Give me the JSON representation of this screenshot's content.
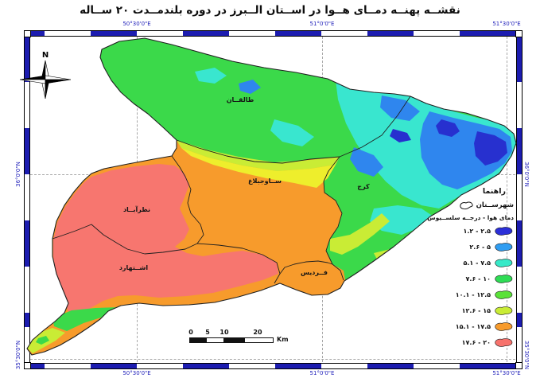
{
  "title": "نقشــه پهنــه دمــای هــوا در اســتان الــبرز در دوره بلندمــدت ۲۰ ســاله",
  "graticule": {
    "top": [
      "50°30'0\"E",
      "51°0'0\"E",
      "51°30'0\"E"
    ],
    "bottom": [
      "50°30'0\"E",
      "51°0'0\"E",
      "51°30'0\"E"
    ],
    "left": [
      "36°0'0\"N",
      "35°30'0\"N"
    ],
    "right": [
      "36°0'0\"N",
      "35°30'0\"N"
    ]
  },
  "north_arrow": {
    "label": "N"
  },
  "map": {
    "regions": [
      {
        "name": "طالقــان"
      },
      {
        "name": "ســاوجبلاغ"
      },
      {
        "name": "کرج"
      },
      {
        "name": "نظرآبــاد"
      },
      {
        "name": "اشــتهارد"
      },
      {
        "name": "فــردیس"
      }
    ]
  },
  "legend": {
    "heading": "راهنما",
    "county_label": "شهرســتان",
    "subtitle": "دمای هوا - درجــه سلســیوس",
    "items": [
      {
        "label": "۱.۲ - ۲.۵",
        "color": "#2b2fd8"
      },
      {
        "label": "۲.۶ - ۵",
        "color": "#2f9df2"
      },
      {
        "label": "۵.۱ - ۷.۵",
        "color": "#36e9c8"
      },
      {
        "label": "۷.۶ - ۱۰",
        "color": "#2fdc55"
      },
      {
        "label": "۱۰.۱ - ۱۲.۵",
        "color": "#5ae239"
      },
      {
        "label": "۱۲.۶ - ۱۵",
        "color": "#c9ec35"
      },
      {
        "label": "۱۵.۱ - ۱۷.۵",
        "color": "#f79b2c"
      },
      {
        "label": "۱۷.۶ - ۲۰",
        "color": "#f7726c"
      }
    ]
  },
  "scalebar": {
    "ticks": [
      "0",
      "5",
      "10",
      "20"
    ],
    "unit": "Km"
  },
  "colors": {
    "frame_blue": "#1c1cb0",
    "graticule_text": "#2323bb",
    "green": "#3bd94a",
    "bright_green": "#5ae239",
    "cyan": "#39e6cf",
    "blue": "#2f86ee",
    "dark_blue": "#2730cf",
    "yellow_green": "#c9ec35",
    "yellow": "#eeee2c",
    "orange": "#f79b2c",
    "salmon": "#f7766f",
    "boundary": "#1f1f1f"
  }
}
